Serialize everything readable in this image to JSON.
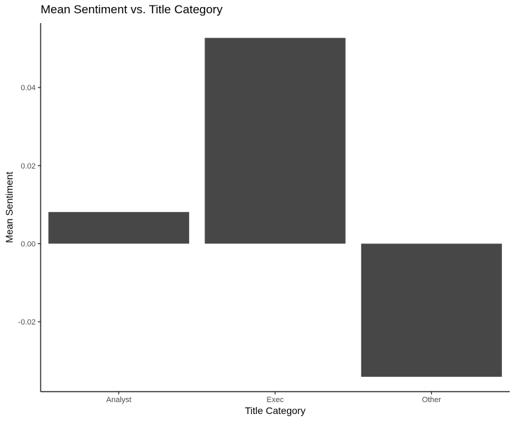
{
  "chart_data": {
    "type": "bar",
    "title": "Mean Sentiment vs. Title Category",
    "xlabel": "Title Category",
    "ylabel": "Mean Sentiment",
    "categories": [
      "Analyst",
      "Exec",
      "Other"
    ],
    "values": [
      0.0081,
      0.0527,
      -0.0341
    ],
    "ylim": [
      -0.0379,
      0.0565
    ],
    "yticks": [
      -0.02,
      0.0,
      0.02,
      0.04
    ],
    "ytick_labels": [
      "-0.02",
      "0.00",
      "0.02",
      "0.04"
    ],
    "grid": false,
    "legend": "none",
    "bar_color": "#474747",
    "axis_color": "#000000"
  }
}
